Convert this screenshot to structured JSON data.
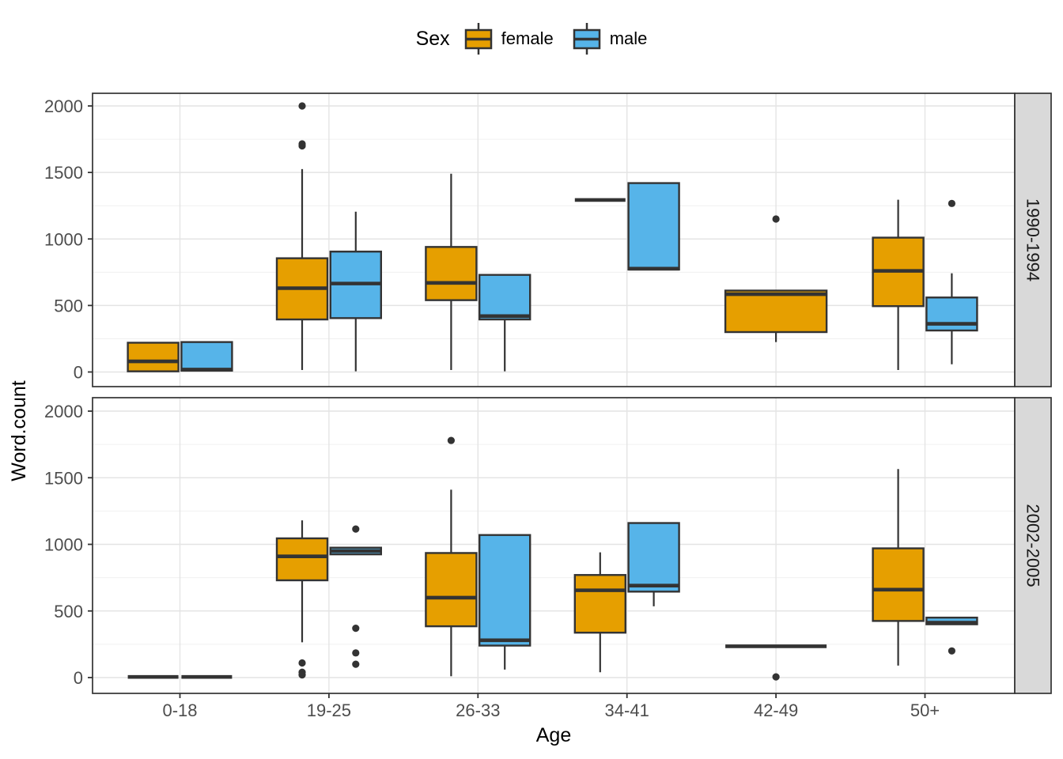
{
  "chart_data": {
    "type": "boxplot",
    "title": "",
    "xlabel": "Age",
    "ylabel": "Word.count",
    "categories": [
      "0-18",
      "19-25",
      "26-33",
      "34-41",
      "42-49",
      "50+"
    ],
    "y_ticks": [
      0,
      500,
      1000,
      1500,
      2000
    ],
    "y_minor_ticks": [
      250,
      750,
      1250,
      1750
    ],
    "ylim": [
      -100,
      2100
    ],
    "grid": "on",
    "legend": {
      "title": "Sex",
      "position": "top-center",
      "items": [
        {
          "label": "female",
          "color": "#E69F00"
        },
        {
          "label": "male",
          "color": "#56B4E9"
        }
      ]
    },
    "colors": {
      "female": "#E69F00",
      "male": "#56B4E9",
      "box_border": "#333333",
      "outlier": "#333333",
      "strip_background": "#D9D9D9",
      "panel_background": "#FFFFFF",
      "grid_major": "#E4E4E4",
      "grid_minor": "#F0F0F0",
      "tick_text": "#4D4D4D"
    },
    "facets": [
      {
        "label": "1990-1994",
        "boxes": [
          {
            "age": "0-18",
            "sex": "female",
            "wide": false,
            "min": 5,
            "q1": 5,
            "median": 80,
            "q3": 220,
            "max": 220,
            "outliers": []
          },
          {
            "age": "0-18",
            "sex": "male",
            "wide": false,
            "min": 10,
            "q1": 10,
            "median": 18,
            "q3": 225,
            "max": 225,
            "outliers": []
          },
          {
            "age": "19-25",
            "sex": "female",
            "wide": false,
            "min": 15,
            "q1": 395,
            "median": 630,
            "q3": 855,
            "max": 1525,
            "outliers": [
              1700,
              1715,
              2000
            ]
          },
          {
            "age": "19-25",
            "sex": "male",
            "wide": false,
            "min": 5,
            "q1": 405,
            "median": 665,
            "q3": 905,
            "max": 1205,
            "outliers": []
          },
          {
            "age": "26-33",
            "sex": "female",
            "wide": false,
            "min": 15,
            "q1": 540,
            "median": 670,
            "q3": 940,
            "max": 1490,
            "outliers": []
          },
          {
            "age": "26-33",
            "sex": "male",
            "wide": false,
            "min": 5,
            "q1": 395,
            "median": 420,
            "q3": 730,
            "max": 730,
            "outliers": []
          },
          {
            "age": "34-41",
            "sex": "female",
            "wide": false,
            "min": 1293,
            "q1": 1293,
            "median": 1293,
            "q3": 1293,
            "max": 1293,
            "outliers": []
          },
          {
            "age": "34-41",
            "sex": "male",
            "wide": false,
            "min": 770,
            "q1": 770,
            "median": 777,
            "q3": 1420,
            "max": 1420,
            "outliers": []
          },
          {
            "age": "42-49",
            "sex": "female",
            "wide": true,
            "min": 225,
            "q1": 300,
            "median": 585,
            "q3": 612,
            "max": 612,
            "outliers": [
              1150
            ]
          },
          {
            "age": "50+",
            "sex": "female",
            "wide": false,
            "min": 15,
            "q1": 495,
            "median": 760,
            "q3": 1010,
            "max": 1295,
            "outliers": []
          },
          {
            "age": "50+",
            "sex": "male",
            "wide": false,
            "min": 58,
            "q1": 312,
            "median": 362,
            "q3": 560,
            "max": 742,
            "outliers": [
              1267
            ]
          }
        ]
      },
      {
        "label": "2002-2005",
        "boxes": [
          {
            "age": "0-18",
            "sex": "female",
            "wide": false,
            "min": 5,
            "q1": 5,
            "median": 5,
            "q3": 5,
            "max": 5,
            "outliers": []
          },
          {
            "age": "0-18",
            "sex": "male",
            "wide": false,
            "min": 5,
            "q1": 5,
            "median": 5,
            "q3": 5,
            "max": 5,
            "outliers": []
          },
          {
            "age": "19-25",
            "sex": "female",
            "wide": false,
            "min": 265,
            "q1": 730,
            "median": 910,
            "q3": 1045,
            "max": 1180,
            "outliers": [
              110,
              40,
              20
            ]
          },
          {
            "age": "19-25",
            "sex": "male",
            "wide": false,
            "min": 925,
            "q1": 925,
            "median": 950,
            "q3": 975,
            "max": 975,
            "outliers": [
              1115,
              370,
              185,
              100
            ]
          },
          {
            "age": "26-33",
            "sex": "female",
            "wide": false,
            "min": 10,
            "q1": 385,
            "median": 600,
            "q3": 935,
            "max": 1410,
            "outliers": [
              1780
            ]
          },
          {
            "age": "26-33",
            "sex": "male",
            "wide": false,
            "min": 60,
            "q1": 240,
            "median": 280,
            "q3": 1070,
            "max": 1070,
            "outliers": []
          },
          {
            "age": "34-41",
            "sex": "female",
            "wide": false,
            "min": 40,
            "q1": 337,
            "median": 655,
            "q3": 770,
            "max": 940,
            "outliers": []
          },
          {
            "age": "34-41",
            "sex": "male",
            "wide": false,
            "min": 535,
            "q1": 645,
            "median": 690,
            "q3": 1160,
            "max": 1160,
            "outliers": []
          },
          {
            "age": "42-49",
            "sex": "female",
            "wide": true,
            "min": 235,
            "q1": 235,
            "median": 235,
            "q3": 235,
            "max": 235,
            "outliers": [
              5
            ]
          },
          {
            "age": "50+",
            "sex": "female",
            "wide": false,
            "min": 90,
            "q1": 425,
            "median": 660,
            "q3": 970,
            "max": 1565,
            "outliers": []
          },
          {
            "age": "50+",
            "sex": "male",
            "wide": false,
            "min": 400,
            "q1": 400,
            "median": 412,
            "q3": 450,
            "max": 450,
            "outliers": [
              200
            ]
          }
        ]
      }
    ]
  }
}
